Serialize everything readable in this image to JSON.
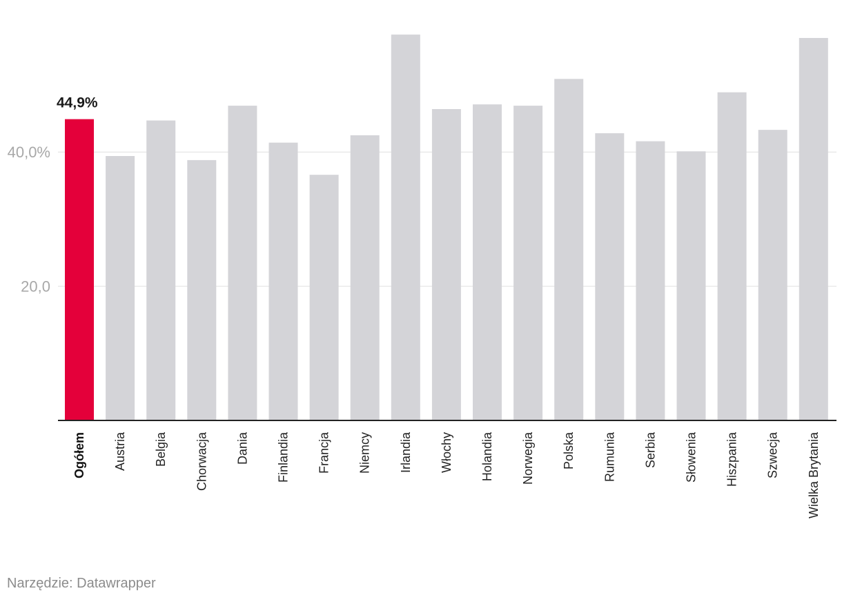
{
  "chart_data": {
    "type": "bar",
    "categories": [
      "Ogółem",
      "Austria",
      "Belgia",
      "Chorwacja",
      "Dania",
      "Finlandia",
      "Francja",
      "Niemcy",
      "Irlandia",
      "Włochy",
      "Holandia",
      "Norwegia",
      "Polska",
      "Rumunia",
      "Serbia",
      "Słowenia",
      "Hiszpania",
      "Szwecja",
      "Wielka Brytania"
    ],
    "values": [
      44.9,
      39.4,
      44.7,
      38.8,
      46.9,
      41.4,
      36.6,
      42.5,
      57.5,
      46.4,
      47.1,
      46.9,
      50.9,
      42.8,
      41.6,
      40.1,
      48.9,
      43.3,
      57.0
    ],
    "highlight_index": 0,
    "highlight_label": "44,9%",
    "yticks": [
      20,
      40
    ],
    "ytick_labels": [
      "20,0",
      "40,0%"
    ],
    "ylim": [
      0,
      59
    ],
    "grid": true,
    "title": "",
    "xlabel": "",
    "ylabel": ""
  },
  "colors": {
    "highlight": "#e4003a",
    "bar": "#d4d4d8",
    "gridline": "#e0e0e0",
    "baseline": "#222222",
    "tick_text": "#a8a8a8"
  },
  "footer": {
    "source": "Narzędzie: Datawrapper"
  }
}
